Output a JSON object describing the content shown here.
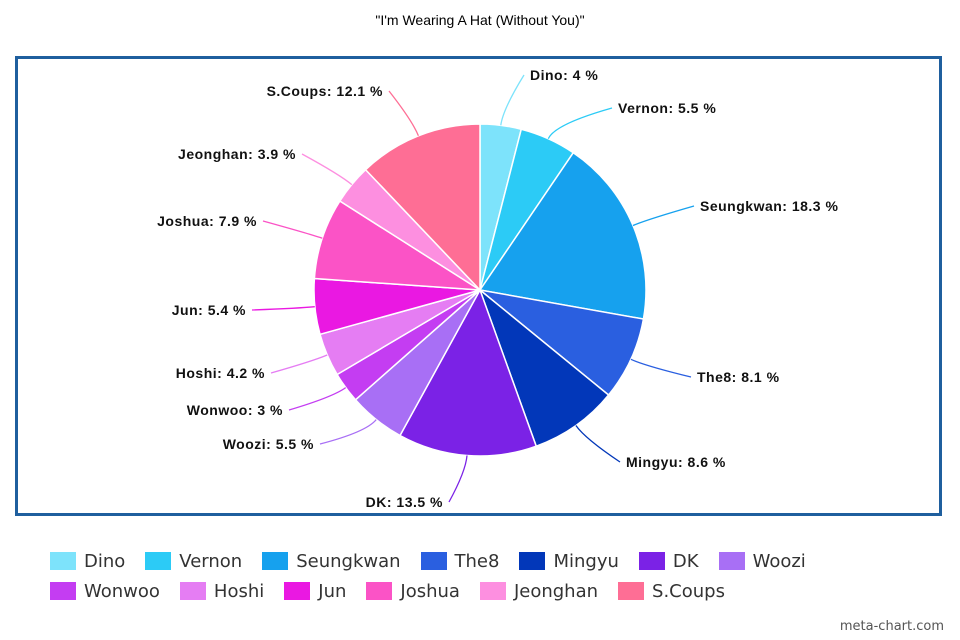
{
  "chart_data": {
    "type": "pie",
    "title": "\"I'm Wearing A Hat (Without You)\"",
    "label_suffix": " %",
    "legend_position": "bottom",
    "slices": [
      {
        "name": "Dino",
        "value": 4,
        "color": "#7de3fb"
      },
      {
        "name": "Vernon",
        "value": 5.5,
        "color": "#2ccbf6"
      },
      {
        "name": "Seungkwan",
        "value": 18.3,
        "color": "#16a1ee"
      },
      {
        "name": "The8",
        "value": 8.1,
        "color": "#2a5fe0"
      },
      {
        "name": "Mingyu",
        "value": 8.6,
        "color": "#0237b9"
      },
      {
        "name": "DK",
        "value": 13.5,
        "color": "#7b22e6"
      },
      {
        "name": "Woozi",
        "value": 5.5,
        "color": "#a86ff5"
      },
      {
        "name": "Wonwoo",
        "value": 3,
        "color": "#c43df2"
      },
      {
        "name": "Hoshi",
        "value": 4.2,
        "color": "#e57df3"
      },
      {
        "name": "Jun",
        "value": 5.4,
        "color": "#ea18e2"
      },
      {
        "name": "Joshua",
        "value": 7.9,
        "color": "#fb53c6"
      },
      {
        "name": "Jeonghan",
        "value": 3.9,
        "color": "#fd8fe0"
      },
      {
        "name": "S.Coups",
        "value": 12.1,
        "color": "#fe6e95"
      }
    ]
  },
  "legend": {
    "rows": [
      [
        "Dino",
        "Vernon",
        "Seungkwan",
        "The8",
        "Mingyu",
        "DK",
        "Woozi"
      ],
      [
        "Wonwoo",
        "Hoshi",
        "Jun",
        "Joshua",
        "Jeonghan",
        "S.Coups"
      ]
    ]
  },
  "watermark": "meta-chart.com"
}
